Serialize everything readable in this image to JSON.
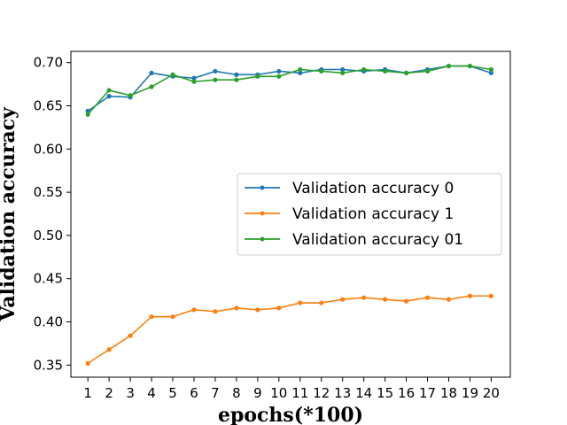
{
  "chart_data": {
    "type": "line",
    "xlabel": "epochs(*100)",
    "ylabel": "Validation  accuracy",
    "x": [
      1,
      2,
      3,
      4,
      5,
      6,
      7,
      8,
      9,
      10,
      11,
      12,
      13,
      14,
      15,
      16,
      17,
      18,
      19,
      20
    ],
    "xticks": [
      "1",
      "2",
      "3",
      "4",
      "5",
      "6",
      "7",
      "8",
      "9",
      "10",
      "11",
      "12",
      "13",
      "14",
      "15",
      "16",
      "17",
      "18",
      "19",
      "20"
    ],
    "xlim": [
      0.2,
      20.9
    ],
    "ylim": [
      0.336,
      0.713
    ],
    "yticks": [
      "0.35",
      "0.40",
      "0.45",
      "0.50",
      "0.55",
      "0.60",
      "0.65",
      "0.70"
    ],
    "ytick_values": [
      0.35,
      0.4,
      0.45,
      0.5,
      0.55,
      0.6,
      0.65,
      0.7
    ],
    "grid": false,
    "legend_position": "center-right",
    "series": [
      {
        "name": "Validation  accuracy 0",
        "color": "#1f77b4",
        "values": [
          0.644,
          0.661,
          0.66,
          0.688,
          0.684,
          0.682,
          0.69,
          0.686,
          0.686,
          0.69,
          0.688,
          0.692,
          0.692,
          0.69,
          0.692,
          0.688,
          0.692,
          0.696,
          0.696,
          0.688
        ]
      },
      {
        "name": "Validation  accuracy 1",
        "color": "#ff7f0e",
        "values": [
          0.352,
          0.368,
          0.384,
          0.406,
          0.406,
          0.414,
          0.412,
          0.416,
          0.414,
          0.416,
          0.422,
          0.422,
          0.426,
          0.428,
          0.426,
          0.424,
          0.428,
          0.426,
          0.43,
          0.43
        ]
      },
      {
        "name": "Validation  accuracy 01",
        "color": "#2ca02c",
        "values": [
          0.64,
          0.668,
          0.662,
          0.672,
          0.686,
          0.678,
          0.68,
          0.68,
          0.684,
          0.684,
          0.692,
          0.69,
          0.688,
          0.692,
          0.69,
          0.688,
          0.69,
          0.696,
          0.696,
          0.692
        ]
      }
    ]
  }
}
